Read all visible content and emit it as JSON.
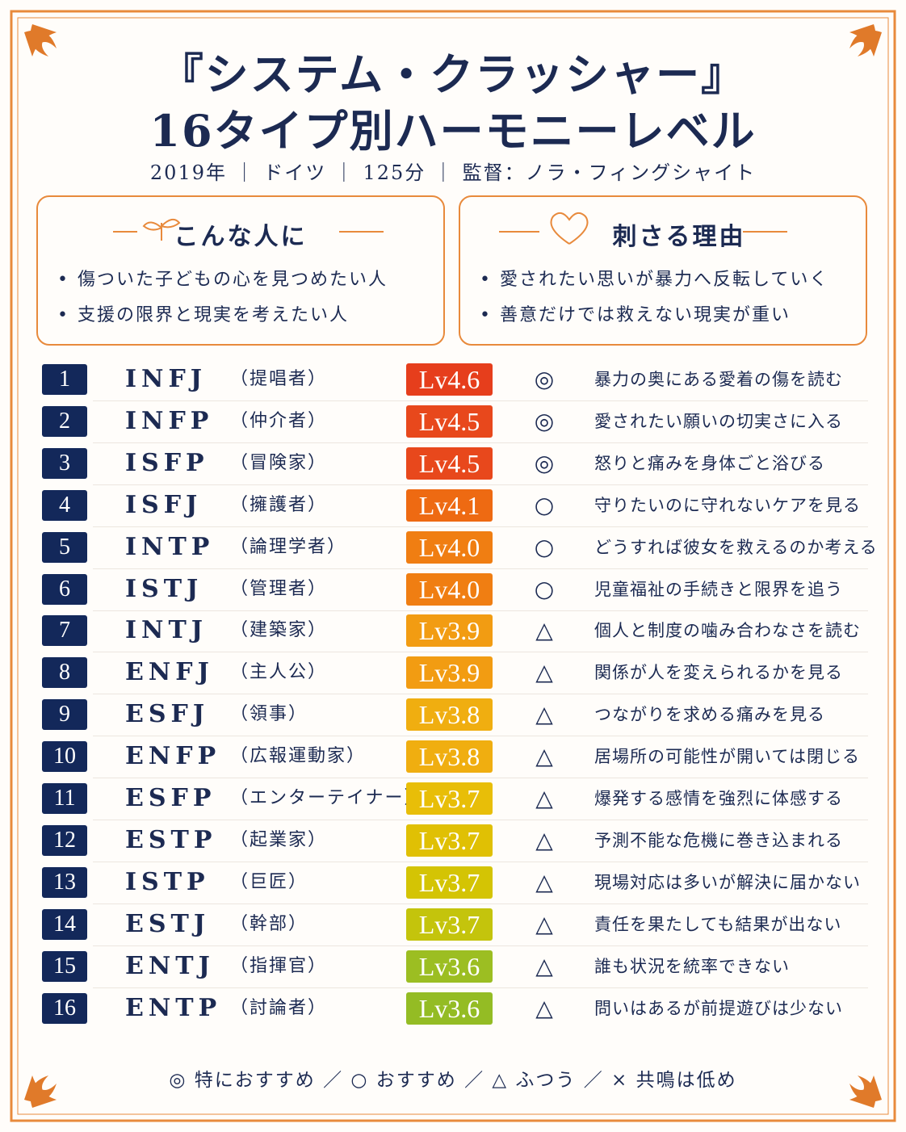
{
  "header": {
    "title_line1": "『システム・クラッシャー』",
    "title_line2": "16タイプ別ハーモニーレベル",
    "subtitle": "2019年 ｜ ドイツ ｜ 125分 ｜ 監督：ノラ・フィングシャイト"
  },
  "boxes": [
    {
      "heading": "こんな人に",
      "items": [
        "傷ついた子どもの心を見つめたい人",
        "支援の限界と現実を考えたい人"
      ]
    },
    {
      "heading": "刺さる理由",
      "items": [
        "愛されたい思いが暴力へ反転していく",
        "善意だけでは救えない現実が重い"
      ]
    }
  ],
  "table": {
    "rows": [
      {
        "rank": 1,
        "type": "INFJ",
        "role": "（提唱者）",
        "level": "Lv4.6",
        "color": "#e63e1c",
        "mark": "◎",
        "comment": "暴力の奥にある愛着の傷を読む"
      },
      {
        "rank": 2,
        "type": "INFP",
        "role": "（仲介者）",
        "level": "Lv4.5",
        "color": "#e8481c",
        "mark": "◎",
        "comment": "愛されたい願いの切実さに入る"
      },
      {
        "rank": 3,
        "type": "ISFP",
        "role": "（冒険家）",
        "level": "Lv4.5",
        "color": "#e8481c",
        "mark": "◎",
        "comment": "怒りと痛みを身体ごと浴びる"
      },
      {
        "rank": 4,
        "type": "ISFJ",
        "role": "（擁護者）",
        "level": "Lv4.1",
        "color": "#ee6a12",
        "mark": "○",
        "comment": "守りたいのに守れないケアを見る"
      },
      {
        "rank": 5,
        "type": "INTP",
        "role": "（論理学者）",
        "level": "Lv4.0",
        "color": "#f07e12",
        "mark": "○",
        "comment": "どうすれば彼女を救えるのか考える"
      },
      {
        "rank": 6,
        "type": "ISTJ",
        "role": "（管理者）",
        "level": "Lv4.0",
        "color": "#f07e12",
        "mark": "○",
        "comment": "児童福祉の手続きと限界を追う"
      },
      {
        "rank": 7,
        "type": "INTJ",
        "role": "（建築家）",
        "level": "Lv3.9",
        "color": "#f29c12",
        "mark": "△",
        "comment": "個人と制度の噛み合わなさを読む"
      },
      {
        "rank": 8,
        "type": "ENFJ",
        "role": "（主人公）",
        "level": "Lv3.9",
        "color": "#f29c12",
        "mark": "△",
        "comment": "関係が人を変えられるかを見る"
      },
      {
        "rank": 9,
        "type": "ESFJ",
        "role": "（領事）",
        "level": "Lv3.8",
        "color": "#f0ae10",
        "mark": "△",
        "comment": "つながりを求める痛みを見る"
      },
      {
        "rank": 10,
        "type": "ENFP",
        "role": "（広報運動家）",
        "level": "Lv3.8",
        "color": "#f0ae10",
        "mark": "△",
        "comment": "居場所の可能性が開いては閉じる"
      },
      {
        "rank": 11,
        "type": "ESFP",
        "role": "（エンターテイナー）",
        "level": "Lv3.7",
        "color": "#e8be08",
        "mark": "△",
        "comment": "爆発する感情を強烈に体感する"
      },
      {
        "rank": 12,
        "type": "ESTP",
        "role": "（起業家）",
        "level": "Lv3.7",
        "color": "#e0c004",
        "mark": "△",
        "comment": "予測不能な危機に巻き込まれる"
      },
      {
        "rank": 13,
        "type": "ISTP",
        "role": "（巨匠）",
        "level": "Lv3.7",
        "color": "#d4c404",
        "mark": "△",
        "comment": "現場対応は多いが解決に届かない"
      },
      {
        "rank": 14,
        "type": "ESTJ",
        "role": "（幹部）",
        "level": "Lv3.7",
        "color": "#c4c40c",
        "mark": "△",
        "comment": "責任を果たしても結果が出ない"
      },
      {
        "rank": 15,
        "type": "ENTJ",
        "role": "（指揮官）",
        "level": "Lv3.6",
        "color": "#9cbe22",
        "mark": "△",
        "comment": "誰も状況を統率できない"
      },
      {
        "rank": 16,
        "type": "ENTP",
        "role": "（討論者）",
        "level": "Lv3.6",
        "color": "#94bc24",
        "mark": "△",
        "comment": "問いはあるが前提遊びは少ない"
      }
    ]
  },
  "legend": "◎ 特におすすめ ／ ○ おすすめ ／ △ ふつう ／ × 共鳴は低め"
}
